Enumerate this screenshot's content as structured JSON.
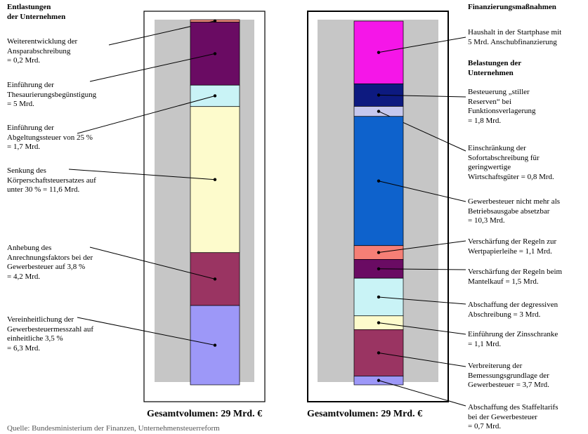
{
  "chart_data": [
    {
      "type": "bar",
      "stacked": true,
      "heading": "Entlastungen\nder Unternehmen",
      "total_label": "Gesamtvolumen: 29 Mrd. €",
      "segments": [
        {
          "label": "Weiterentwicklung der\nAnsparabschreibung\n= 0,2 Mrd.",
          "value": 0.2,
          "color": "#e8867a"
        },
        {
          "label": "Einführung der\nThesaurierungsbegünstigung\n= 5 Mrd.",
          "value": 5,
          "color": "#6a0b63"
        },
        {
          "label": "Einführung der\nAbgeltungssteuer von 25 %\n= 1,7 Mrd.",
          "value": 1.7,
          "color": "#c9f3f6"
        },
        {
          "label": "Senkung des\nKörperschaftsteuersatzes auf\nunter 30 % = 11,6 Mrd.",
          "value": 11.6,
          "color": "#fdfbcc"
        },
        {
          "label": "Anhebung des\nAnrechnungsfaktors bei der\nGewerbesteuer auf 3,8 %\n= 4,2 Mrd.",
          "value": 4.2,
          "color": "#9a3462"
        },
        {
          "label": "Vereinheitlichung der\nGewerbesteuermesszahl auf\neinheitliche 3,5 %\n= 6,3 Mrd.",
          "value": 6.3,
          "color": "#9d98f8"
        }
      ]
    },
    {
      "type": "bar",
      "stacked": true,
      "heading_top": "Finanzierungsmaßnahmen",
      "heading_mid": "Belastungen der\nUnternehmen",
      "total_label": "Gesamtvolumen: 29 Mrd. €",
      "segments": [
        {
          "label": "Haushalt in der Startphase mit\n5 Mrd. Anschubfinanzierung",
          "value": 5,
          "color": "#f516e8"
        },
        {
          "label": "Besteuerung „stiller\nReserven“ bei\nFunktionsverlagerung\n= 1,8 Mrd.",
          "value": 1.8,
          "color": "#0d1a80"
        },
        {
          "label": "Einschränkung der\nSofortabschreibung für\ngeringwertige\nWirtschaftsgüter = 0,8 Mrd.",
          "value": 0.8,
          "color": "#c6c8ee"
        },
        {
          "label": "Gewerbesteuer nicht mehr als\nBetriebsausgabe absetzbar\n= 10,3 Mrd.",
          "value": 10.3,
          "color": "#0e62cc"
        },
        {
          "label": "Verschärfung der Regeln zur\nWertpapierleihe = 1,1 Mrd.",
          "value": 1.1,
          "color": "#f57f76"
        },
        {
          "label": "Verschärfung der Regeln beim\nMantelkauf = 1,5 Mrd.",
          "value": 1.5,
          "color": "#6a0b63"
        },
        {
          "label": "Abschaffung der degressiven\nAbschreibung = 3 Mrd.",
          "value": 3,
          "color": "#c9f3f6"
        },
        {
          "label": "Einführung der Zinsschranke\n= 1,1 Mrd.",
          "value": 1.1,
          "color": "#fdfbcc"
        },
        {
          "label": "Verbreiterung der\nBemessungsgrundlage der\nGewerbesteuer = 3,7 Mrd.",
          "value": 3.7,
          "color": "#9a3462"
        },
        {
          "label": "Abschaffung des Staffeltarifs\nbei der Gewerbesteuer\n= 0,7 Mrd.",
          "value": 0.7,
          "color": "#9d98f8"
        }
      ]
    }
  ],
  "source_note": "Quelle: Bundesministerium der Finanzen, Unternehmensteuerreform"
}
